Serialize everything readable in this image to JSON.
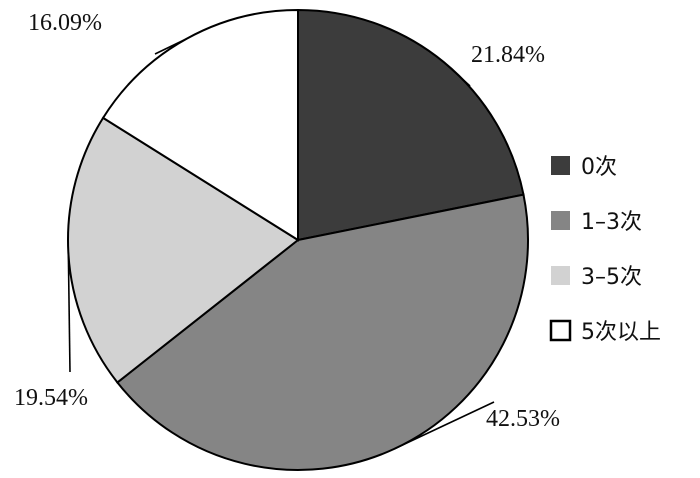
{
  "chart_data": {
    "type": "pie",
    "title": "",
    "slices": [
      {
        "label": "0次",
        "value": 21.84,
        "value_label": "21.84%",
        "color": "#3c3c3c"
      },
      {
        "label": "1–3次",
        "value": 42.53,
        "value_label": "42.53%",
        "color": "#858585"
      },
      {
        "label": "3–5次",
        "value": 19.54,
        "value_label": "19.54%",
        "color": "#d2d2d2"
      },
      {
        "label": "5次以上",
        "value": 16.09,
        "value_label": "16.09%",
        "color": "#ffffff"
      }
    ],
    "start_direction": "12 o'clock",
    "direction": "clockwise",
    "legend_position": "right",
    "slice_border_color": "#000000"
  }
}
